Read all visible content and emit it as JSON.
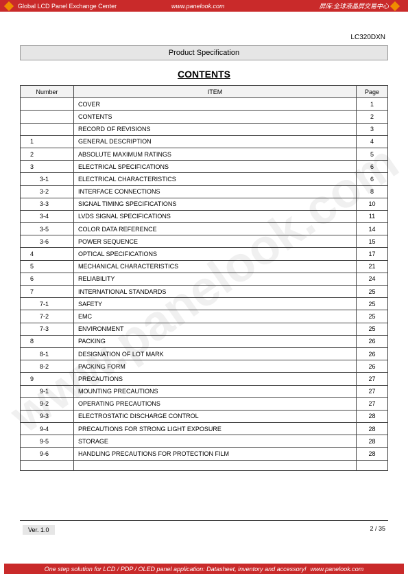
{
  "header": {
    "left": "Global LCD Panel Exchange Center",
    "url": "www.panelook.com",
    "cn": "屏库:全球液晶屏交易中心"
  },
  "model": "LC320DXN",
  "spec_band": "Product Specification",
  "contents_title": "CONTENTS",
  "columns": {
    "number": "Number",
    "item": "ITEM",
    "page": "Page"
  },
  "rows": [
    {
      "num": "",
      "sub": false,
      "item": "COVER",
      "page": "1"
    },
    {
      "num": "",
      "sub": false,
      "item": "CONTENTS",
      "page": "2"
    },
    {
      "num": "",
      "sub": false,
      "item": "RECORD OF REVISIONS",
      "page": "3"
    },
    {
      "num": "1",
      "sub": false,
      "item": "GENERAL DESCRIPTION",
      "page": "4"
    },
    {
      "num": "2",
      "sub": false,
      "item": "ABSOLUTE MAXIMUM RATINGS",
      "page": "5"
    },
    {
      "num": "3",
      "sub": false,
      "item": "ELECTRICAL SPECIFICATIONS",
      "page": "6"
    },
    {
      "num": "3-1",
      "sub": true,
      "item": "ELECTRICAL CHARACTERISTICS",
      "page": "6"
    },
    {
      "num": "3-2",
      "sub": true,
      "item": "INTERFACE CONNECTIONS",
      "page": "8"
    },
    {
      "num": "3-3",
      "sub": true,
      "item": "SIGNAL TIMING SPECIFICATIONS",
      "page": "10"
    },
    {
      "num": "3-4",
      "sub": true,
      "item": "LVDS SIGNAL SPECIFICATIONS",
      "page": "11"
    },
    {
      "num": "3-5",
      "sub": true,
      "item": "COLOR DATA REFERENCE",
      "page": "14"
    },
    {
      "num": "3-6",
      "sub": true,
      "item": "POWER SEQUENCE",
      "page": "15"
    },
    {
      "num": "4",
      "sub": false,
      "item": "OPTICAL SPECIFICATIONS",
      "page": "17"
    },
    {
      "num": "5",
      "sub": false,
      "item": "MECHANICAL CHARACTERISTICS",
      "page": "21"
    },
    {
      "num": "6",
      "sub": false,
      "item": "RELIABILITY",
      "page": "24"
    },
    {
      "num": "7",
      "sub": false,
      "item": "INTERNATIONAL STANDARDS",
      "page": "25"
    },
    {
      "num": "7-1",
      "sub": true,
      "item": "SAFETY",
      "page": "25"
    },
    {
      "num": "7-2",
      "sub": true,
      "item": "EMC",
      "page": "25"
    },
    {
      "num": "7-3",
      "sub": true,
      "item": "ENVIRONMENT",
      "page": "25"
    },
    {
      "num": "8",
      "sub": false,
      "item": "PACKING",
      "page": "26"
    },
    {
      "num": "8-1",
      "sub": true,
      "item": "DESIGNATION OF LOT MARK",
      "page": "26"
    },
    {
      "num": "8-2",
      "sub": true,
      "item": "PACKING FORM",
      "page": "26"
    },
    {
      "num": "9",
      "sub": false,
      "item": "PRECAUTIONS",
      "page": "27"
    },
    {
      "num": "9-1",
      "sub": true,
      "item": "MOUNTING PRECAUTIONS",
      "page": "27"
    },
    {
      "num": "9-2",
      "sub": true,
      "item": "OPERATING PRECAUTIONS",
      "page": "27"
    },
    {
      "num": "9-3",
      "sub": true,
      "item": "ELECTROSTATIC DISCHARGE CONTROL",
      "page": "28"
    },
    {
      "num": "9-4",
      "sub": true,
      "item": "PRECAUTIONS FOR STRONG LIGHT EXPOSURE",
      "page": "28"
    },
    {
      "num": "9-5",
      "sub": true,
      "item": "STORAGE",
      "page": "28"
    },
    {
      "num": "9-6",
      "sub": true,
      "item": "HANDLING PRECAUTIONS FOR PROTECTION FILM",
      "page": "28"
    }
  ],
  "watermark": "www.panelook.com",
  "footer": {
    "version": "Ver. 1.0",
    "page": "2 / 35"
  },
  "bottom": {
    "text": "One step solution for LCD / PDP / OLED panel application: Datasheet, inventory and accessory!",
    "url": "www.panelook.com"
  }
}
